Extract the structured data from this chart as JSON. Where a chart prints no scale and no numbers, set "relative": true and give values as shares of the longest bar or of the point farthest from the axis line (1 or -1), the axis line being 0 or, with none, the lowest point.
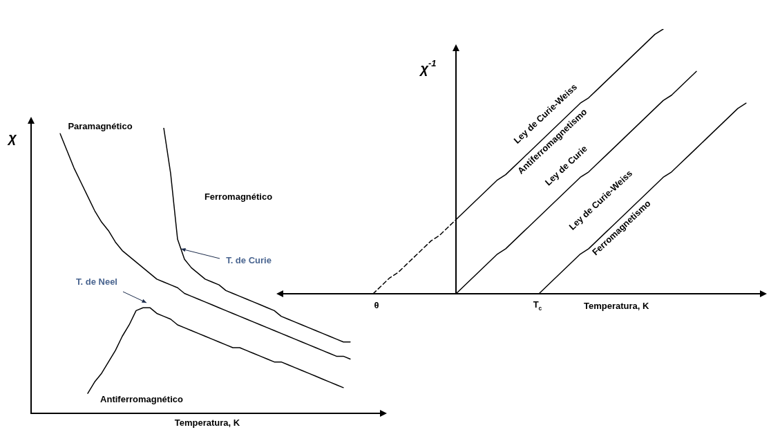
{
  "chart_data": [
    {
      "type": "line",
      "relative": true,
      "xlabel": "Temperatura, K",
      "ylabel": "χ",
      "tick_labels": false,
      "marker": "none",
      "line_style": "solid",
      "categories": [
        null,
        null,
        null,
        null,
        null,
        null,
        null,
        null,
        null,
        null,
        null,
        null,
        null,
        null,
        null,
        null,
        null,
        null,
        null,
        null,
        null,
        null,
        null,
        null,
        null,
        null,
        null,
        null,
        null,
        null,
        null,
        null,
        null,
        null,
        null,
        null,
        null,
        null,
        null,
        null,
        null,
        null,
        null
      ],
      "series": [
        {
          "color": "#000000",
          "values": [
            0.98,
            0.92,
            0.86,
            0.81,
            0.76,
            0.71,
            0.67,
            0.64,
            0.6,
            0.57,
            0.55,
            0.53,
            0.51,
            0.49,
            0.47,
            0.46,
            0.45,
            0.44,
            0.42,
            0.41,
            0.4,
            0.39,
            0.38,
            0.37,
            0.36,
            0.35,
            0.34,
            0.33,
            0.32,
            0.31,
            0.3,
            0.29,
            0.28,
            0.27,
            0.26,
            0.25,
            0.24,
            0.23,
            0.22,
            0.21,
            0.2,
            0.2,
            0.19
          ]
        },
        {
          "color": "#000000",
          "values": [
            null,
            null,
            null,
            null,
            null,
            null,
            null,
            null,
            null,
            null,
            null,
            null,
            null,
            null,
            null,
            1.0,
            0.84,
            0.61,
            0.54,
            0.51,
            0.49,
            0.47,
            0.46,
            0.45,
            0.43,
            0.42,
            0.41,
            0.4,
            0.39,
            0.38,
            0.37,
            0.36,
            0.34,
            0.33,
            0.32,
            0.31,
            0.3,
            0.29,
            0.28,
            0.27,
            0.26,
            0.25,
            0.25
          ]
        },
        {
          "color": "#000000",
          "values": [
            null,
            null,
            null,
            null,
            0.07,
            0.11,
            0.14,
            0.18,
            0.22,
            0.27,
            0.31,
            0.36,
            0.37,
            0.37,
            0.35,
            0.34,
            0.33,
            0.31,
            0.3,
            0.29,
            0.28,
            0.27,
            0.26,
            0.25,
            0.24,
            0.23,
            0.23,
            0.22,
            0.21,
            0.2,
            0.19,
            0.18,
            0.18,
            0.17,
            0.16,
            0.15,
            0.14,
            0.13,
            0.12,
            0.11,
            0.1,
            0.09,
            null
          ]
        }
      ],
      "annotations": [
        "Paramagnético",
        "Ferromagnético",
        "Antiferromagnético",
        "T. de Curie",
        "T. de Neel"
      ]
    },
    {
      "type": "line",
      "relative": true,
      "xlabel": "Temperatura, K",
      "ylabel": "χ$^{-1}$",
      "tick_labels": false,
      "marker": "none",
      "categories": [
        null,
        null,
        null,
        null,
        null,
        null,
        null,
        null,
        null,
        null,
        null,
        null,
        null,
        null,
        null,
        null,
        null,
        null,
        null,
        null,
        null,
        null,
        null,
        null,
        null,
        null,
        null,
        null,
        null,
        null,
        null,
        null,
        null,
        null,
        null,
        null,
        null,
        null,
        null,
        null,
        null,
        null,
        null,
        null,
        null,
        null
      ],
      "series": [
        {
          "color": "#000000",
          "values": [
            null,
            null,
            null,
            null,
            null,
            null,
            null,
            null,
            null,
            null,
            0,
            0.03,
            0.06,
            0.09,
            0.12,
            0.15,
            0.17,
            0.2,
            0.23,
            0.26,
            0.29,
            0.32,
            0.35,
            0.38,
            0.41,
            0.44,
            0.46,
            0.49,
            0.52,
            0.55,
            0.58,
            0.61,
            0.64,
            0.67,
            0.7,
            0.73,
            0.75,
            0.78,
            0.81,
            0.84,
            null,
            null,
            null,
            null,
            null,
            null
          ]
        },
        {
          "color": "#000000",
          "values": [
            null,
            null,
            null,
            null,
            null,
            null,
            null,
            null,
            null,
            null,
            0.28,
            0.31,
            0.34,
            0.37,
            0.4,
            0.43,
            0.45,
            0.48,
            0.51,
            0.54,
            0.57,
            0.6,
            0.63,
            0.66,
            0.69,
            0.72,
            0.74,
            0.77,
            0.8,
            0.83,
            0.86,
            0.89,
            0.92,
            0.95,
            0.98,
            1.0,
            null,
            null,
            null,
            null,
            null,
            null,
            null,
            null,
            null,
            null
          ]
        },
        {
          "color": "#000000",
          "line_style": "dashed",
          "values": [
            0,
            0.03,
            0.06,
            0.08,
            0.11,
            0.14,
            0.17,
            0.2,
            0.22,
            0.25,
            0.28,
            null,
            null,
            null,
            null,
            null,
            null,
            null,
            null,
            null,
            null,
            null,
            null,
            null,
            null,
            null,
            null,
            null,
            null,
            null,
            null,
            null,
            null,
            null,
            null,
            null,
            null,
            null,
            null,
            null,
            null,
            null,
            null,
            null,
            null,
            null
          ]
        },
        {
          "color": "#000000",
          "values": [
            null,
            null,
            null,
            null,
            null,
            null,
            null,
            null,
            null,
            null,
            null,
            null,
            null,
            null,
            null,
            null,
            null,
            null,
            null,
            null,
            0,
            0.03,
            0.06,
            0.09,
            0.12,
            0.15,
            0.17,
            0.2,
            0.23,
            0.26,
            0.29,
            0.32,
            0.35,
            0.38,
            0.41,
            0.44,
            0.46,
            0.49,
            0.52,
            0.55,
            0.58,
            0.61,
            0.64,
            0.67,
            0.7,
            0.72
          ]
        }
      ],
      "annotations": [
        "Ley de Curie-Weiss",
        "Antiferromagnetismo",
        "Ley de Curie",
        "Ley de Curie-Weiss",
        "Ferromagnetismo",
        "θ",
        "T$_{c}$"
      ]
    }
  ]
}
